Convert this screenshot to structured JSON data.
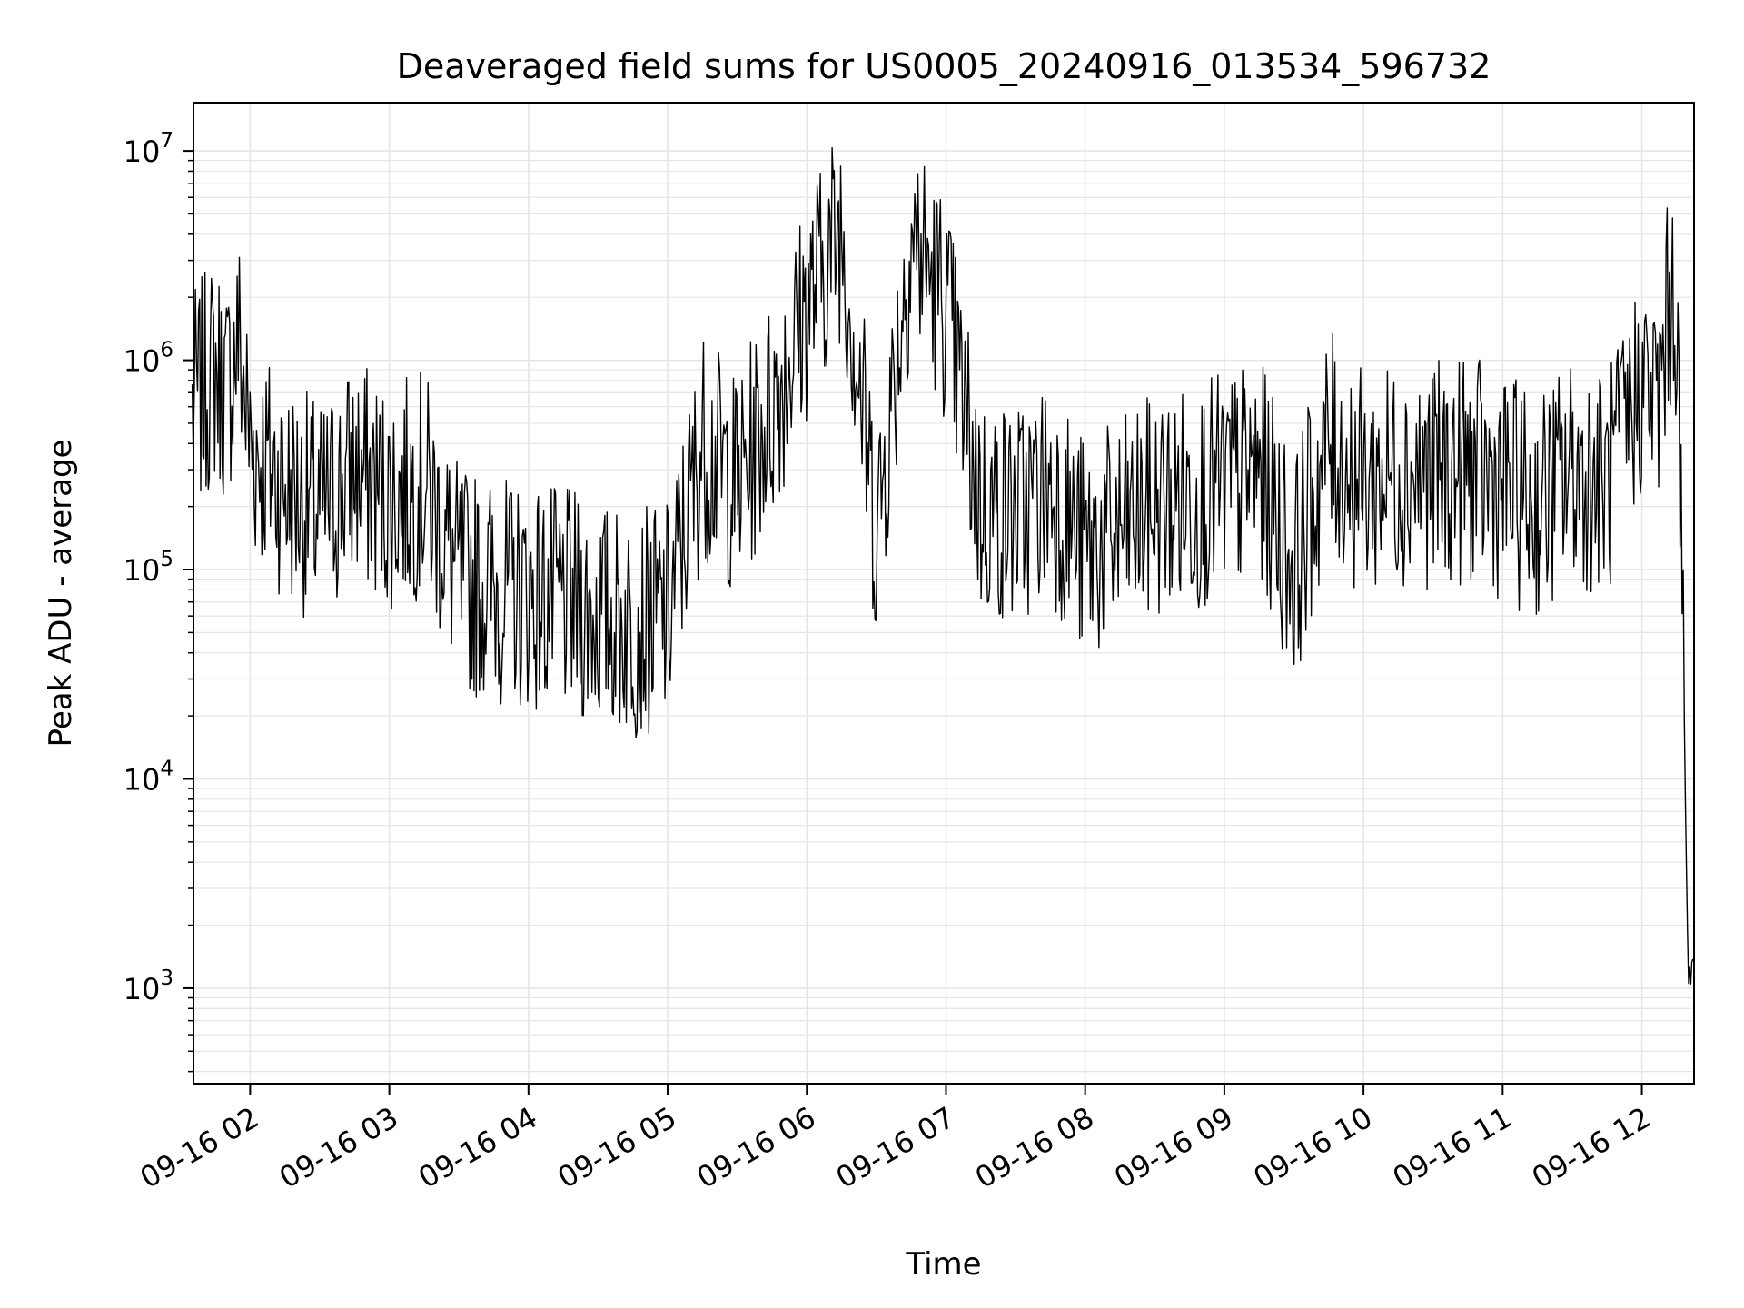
{
  "chart_data": {
    "type": "line",
    "title": "Deaveraged field sums for US0005_20240916_013534_596732",
    "xlabel": "Time",
    "ylabel": "Peak ADU - average",
    "yscale": "log",
    "ylim": [
      350,
      17000000
    ],
    "xlim": [
      "2024-09-16 01:35:34",
      "2024-09-16 12:22:30"
    ],
    "grid": true,
    "line_color": "#000000",
    "grid_color": "#e5e5e5",
    "x_ticks": [
      "09-16 02",
      "09-16 03",
      "09-16 04",
      "09-16 05",
      "09-16 06",
      "09-16 07",
      "09-16 08",
      "09-16 09",
      "09-16 10",
      "09-16 11",
      "09-16 12"
    ],
    "x_tick_times": [
      "2024-09-16 02:00",
      "2024-09-16 03:00",
      "2024-09-16 04:00",
      "2024-09-16 05:00",
      "2024-09-16 06:00",
      "2024-09-16 07:00",
      "2024-09-16 08:00",
      "2024-09-16 09:00",
      "2024-09-16 10:00",
      "2024-09-16 11:00",
      "2024-09-16 12:00"
    ],
    "y_ticks": [
      {
        "base": "10",
        "exp": "3",
        "value": 1000
      },
      {
        "base": "10",
        "exp": "4",
        "value": 10000
      },
      {
        "base": "10",
        "exp": "5",
        "value": 100000
      },
      {
        "base": "10",
        "exp": "6",
        "value": 1000000
      },
      {
        "base": "10",
        "exp": "7",
        "value": 10000000
      }
    ],
    "series": [
      {
        "x": [
          "2024-09-16 01:35",
          "2024-09-16 01:45",
          "2024-09-16 01:50",
          "2024-09-16 01:55",
          "2024-09-16 02:00",
          "2024-09-16 02:15",
          "2024-09-16 02:30",
          "2024-09-16 02:45",
          "2024-09-16 03:00",
          "2024-09-16 03:15",
          "2024-09-16 03:30",
          "2024-09-16 03:45",
          "2024-09-16 04:00",
          "2024-09-16 04:15",
          "2024-09-16 04:30",
          "2024-09-16 04:45",
          "2024-09-16 05:00",
          "2024-09-16 05:15",
          "2024-09-16 05:30",
          "2024-09-16 05:45",
          "2024-09-16 06:00",
          "2024-09-16 06:15",
          "2024-09-16 06:30",
          "2024-09-16 06:45",
          "2024-09-16 07:00",
          "2024-09-16 07:15",
          "2024-09-16 07:30",
          "2024-09-16 07:45",
          "2024-09-16 08:00",
          "2024-09-16 08:15",
          "2024-09-16 08:30",
          "2024-09-16 08:45",
          "2024-09-16 09:00",
          "2024-09-16 09:15",
          "2024-09-16 09:30",
          "2024-09-16 09:45",
          "2024-09-16 10:00",
          "2024-09-16 10:15",
          "2024-09-16 10:30",
          "2024-09-16 10:45",
          "2024-09-16 11:00",
          "2024-09-16 11:15",
          "2024-09-16 11:30",
          "2024-09-16 11:45",
          "2024-09-16 12:00",
          "2024-09-16 12:07",
          "2024-09-16 12:12",
          "2024-09-16 12:15",
          "2024-09-16 12:18",
          "2024-09-16 12:20",
          "2024-09-16 12:22"
        ],
        "y": [
          600000,
          900000,
          700000,
          1300000,
          400000,
          250000,
          180000,
          300000,
          220000,
          260000,
          90000,
          80000,
          75000,
          70000,
          60000,
          55000,
          60000,
          400000,
          250000,
          600000,
          1800000,
          4500000,
          150000,
          4000000,
          1800000,
          200000,
          180000,
          250000,
          120000,
          150000,
          200000,
          220000,
          250000,
          300000,
          100000,
          400000,
          250000,
          300000,
          280000,
          300000,
          250000,
          200000,
          300000,
          250000,
          800000,
          600000,
          2000000,
          1800000,
          30000,
          1000,
          1500
        ]
      }
    ]
  }
}
